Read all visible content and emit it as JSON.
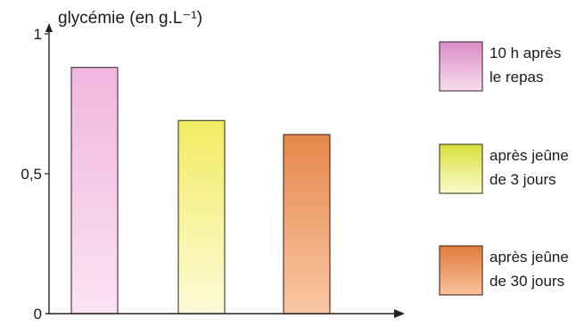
{
  "chart_data": {
    "type": "bar",
    "ylabel": "glycémie (en g.L⁻¹)",
    "ylim": [
      0,
      1
    ],
    "y_ticks": [
      {
        "value": 0,
        "label": "0"
      },
      {
        "value": 0.5,
        "label": "0,5"
      },
      {
        "value": 1,
        "label": "1"
      }
    ],
    "categories": [
      "10 h après le repas",
      "après jeûne de 3 jours",
      "après jeûne de 30 jours"
    ],
    "values": [
      0.88,
      0.69,
      0.64
    ],
    "legend": {
      "placement": "right",
      "items": [
        {
          "lines": [
            "10 h après",
            "le repas"
          ],
          "color_top": "#d98ec6",
          "color_bottom": "#f8dced",
          "stroke": "#5a3a4f"
        },
        {
          "lines": [
            "après jeûne",
            "de 3 jours"
          ],
          "color_top": "#d8df3c",
          "color_bottom": "#fbfbcb",
          "stroke": "#4d4d2a"
        },
        {
          "lines": [
            "après jeûne",
            "de 30 jours"
          ],
          "color_top": "#e07a3c",
          "color_bottom": "#f8c29a",
          "stroke": "#5a3522"
        }
      ]
    },
    "bar_colors": [
      {
        "top": "#f0b6dd",
        "bottom": "#fbe3f2",
        "stroke": "#5a3a4f"
      },
      {
        "top": "#f1ec62",
        "bottom": "#fefbd9",
        "stroke": "#4d4d2a"
      },
      {
        "top": "#e5874c",
        "bottom": "#f9c7a3",
        "stroke": "#5a3522"
      }
    ],
    "axis_color": "#222222"
  }
}
